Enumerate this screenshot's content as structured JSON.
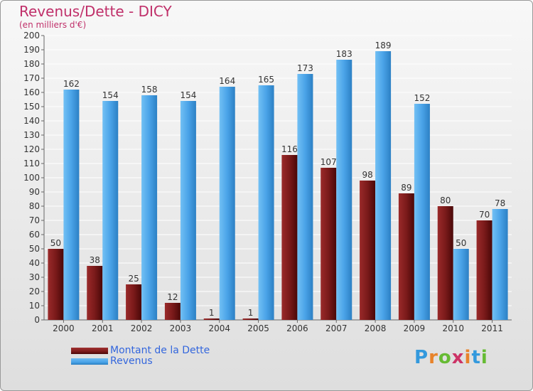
{
  "title": "Revenus/Dette - DICY",
  "subtitle": "(en milliers d'€)",
  "brand": [
    "P",
    "r",
    "o",
    "x",
    "i",
    "t",
    "i"
  ],
  "brand_colors": [
    "#3399dd",
    "#e8832a",
    "#66bb33",
    "#cc3366",
    "#e8832a",
    "#3399dd",
    "#66bb33"
  ],
  "colors": {
    "dette": "#7a1a1a",
    "revenus": "#4aa3e8"
  },
  "chart_data": {
    "type": "bar",
    "title": "Revenus/Dette - DICY",
    "ylabel": "(en milliers d'€)",
    "categories": [
      "2000",
      "2001",
      "2002",
      "2003",
      "2004",
      "2005",
      "2006",
      "2007",
      "2008",
      "2009",
      "2010",
      "2011"
    ],
    "series": [
      {
        "name": "Montant de la Dette",
        "values": [
          50,
          38,
          25,
          12,
          1,
          1,
          116,
          107,
          98,
          89,
          80,
          70
        ]
      },
      {
        "name": "Revenus",
        "values": [
          162,
          154,
          158,
          154,
          164,
          165,
          173,
          183,
          189,
          152,
          50,
          78
        ]
      }
    ],
    "ylim": [
      0,
      200
    ],
    "yticks": [
      0,
      10,
      20,
      30,
      40,
      50,
      60,
      70,
      80,
      90,
      100,
      110,
      120,
      130,
      140,
      150,
      160,
      170,
      180,
      190,
      200
    ],
    "grid": true,
    "legend": "bottom-left"
  }
}
